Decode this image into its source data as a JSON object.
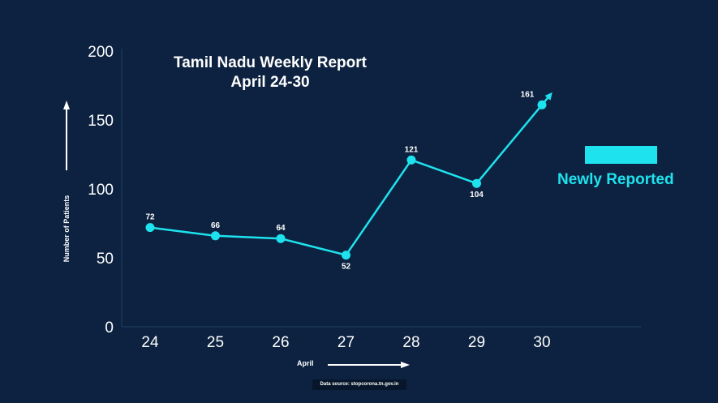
{
  "chart_data": {
    "type": "line",
    "title": "Tamil Nadu Weekly Report",
    "subtitle": "April 24-30",
    "xlabel": "April",
    "ylabel": "Number of Patients",
    "categories": [
      "24",
      "25",
      "26",
      "27",
      "28",
      "29",
      "30"
    ],
    "series": [
      {
        "name": "Newly Reported",
        "values": [
          72,
          66,
          64,
          52,
          121,
          104,
          161
        ]
      }
    ],
    "data_labels": [
      "72",
      "66",
      "64",
      "52",
      "121",
      "104",
      "161"
    ],
    "yticks": [
      "0",
      "50",
      "100",
      "150",
      "200"
    ],
    "ylim": [
      0,
      200
    ],
    "grid": false,
    "legend": "right",
    "source_note": "Data source: stopcorona.tn.gov.in"
  },
  "colors": {
    "background": "#0c2240",
    "line": "#1ee3ee",
    "text": "#ffffff",
    "axis": "#1b3656",
    "source_bg": "#07162a"
  },
  "icons": {
    "y_arrow": "arrow-up-icon",
    "x_arrow": "arrow-right-icon"
  }
}
